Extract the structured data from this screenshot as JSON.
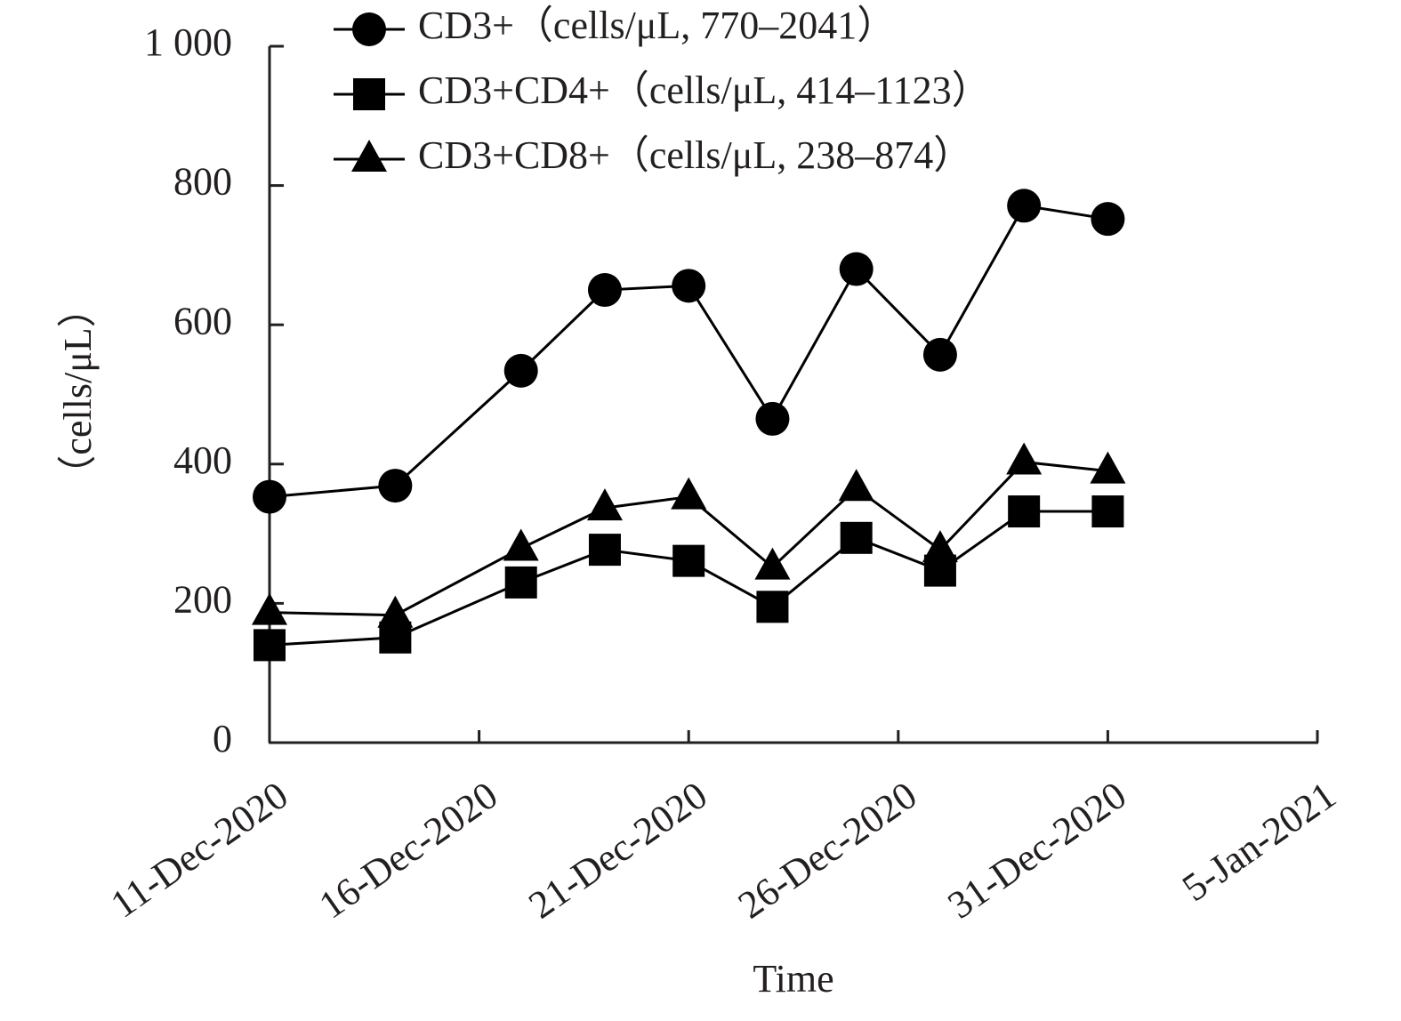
{
  "chart_data": {
    "type": "line",
    "y_label": "（cells/μL）",
    "x_label": "Time",
    "x": [
      "2020-12-11",
      "2020-12-14",
      "2020-12-17",
      "2020-12-19",
      "2020-12-21",
      "2020-12-23",
      "2020-12-25",
      "2020-12-27",
      "2020-12-29",
      "2020-12-31"
    ],
    "series": [
      {
        "name": "CD3+（cells/μL, 770–2041）",
        "color": "#000000",
        "marker": "circle",
        "values": [
          353,
          369,
          534,
          650,
          656,
          465,
          680,
          557,
          771,
          752
        ]
      },
      {
        "name": "CD3+CD4+（cells/μL, 414–1123）",
        "color": "#000000",
        "marker": "square",
        "values": [
          140,
          151,
          230,
          277,
          261,
          195,
          294,
          247,
          332,
          332
        ]
      },
      {
        "name": "CD3+CD8+（cells/μL, 238–874）",
        "color": "#000000",
        "marker": "triangle",
        "values": [
          187,
          183,
          279,
          337,
          353,
          252,
          365,
          277,
          403,
          390
        ]
      }
    ],
    "xlim": [
      "2020-12-11",
      "2021-01-05"
    ],
    "xticks": [
      {
        "value": "2020-12-11",
        "label": "11-Dec-2020"
      },
      {
        "value": "2020-12-16",
        "label": "16-Dec-2020"
      },
      {
        "value": "2020-12-21",
        "label": "21-Dec-2020"
      },
      {
        "value": "2020-12-26",
        "label": "26-Dec-2020"
      },
      {
        "value": "2020-12-31",
        "label": "31-Dec-2020"
      },
      {
        "value": "2021-01-05",
        "label": "5-Jan-2021"
      }
    ],
    "ylim": [
      0,
      1000
    ],
    "yticks": [
      0,
      200,
      400,
      600,
      800,
      {
        "value": 1000,
        "label": "1 000"
      }
    ],
    "legend": "top"
  }
}
